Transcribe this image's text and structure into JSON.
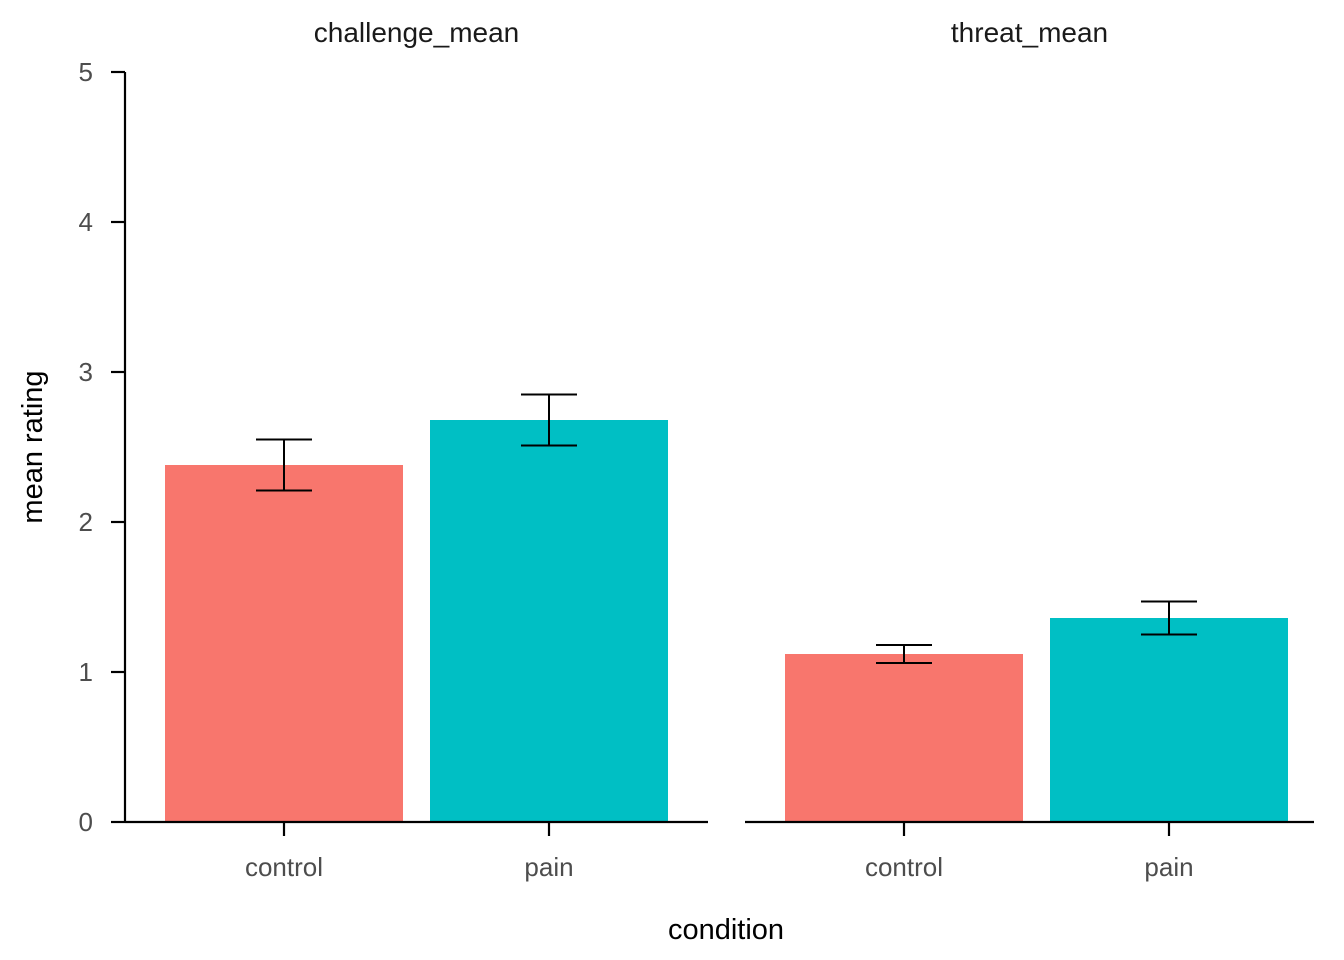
{
  "chart_data": {
    "type": "bar",
    "xlabel": "condition",
    "ylabel": "mean rating",
    "ylim": [
      0,
      5
    ],
    "yticks": [
      0,
      1,
      2,
      3,
      4,
      5
    ],
    "grid": false,
    "legend": "none",
    "colors": {
      "control": "#F8766D",
      "pain": "#00BFC4",
      "errorbar": "#000000",
      "axis": "#000000"
    },
    "categories": [
      "control",
      "pain"
    ],
    "panels": [
      {
        "title": "challenge_mean",
        "bars": [
          {
            "category": "control",
            "value": 2.38,
            "err_low": 2.21,
            "err_high": 2.55
          },
          {
            "category": "pain",
            "value": 2.68,
            "err_low": 2.51,
            "err_high": 2.85
          }
        ]
      },
      {
        "title": "threat_mean",
        "bars": [
          {
            "category": "control",
            "value": 1.12,
            "err_low": 1.06,
            "err_high": 1.18
          },
          {
            "category": "pain",
            "value": 1.36,
            "err_low": 1.25,
            "err_high": 1.47
          }
        ]
      }
    ]
  }
}
